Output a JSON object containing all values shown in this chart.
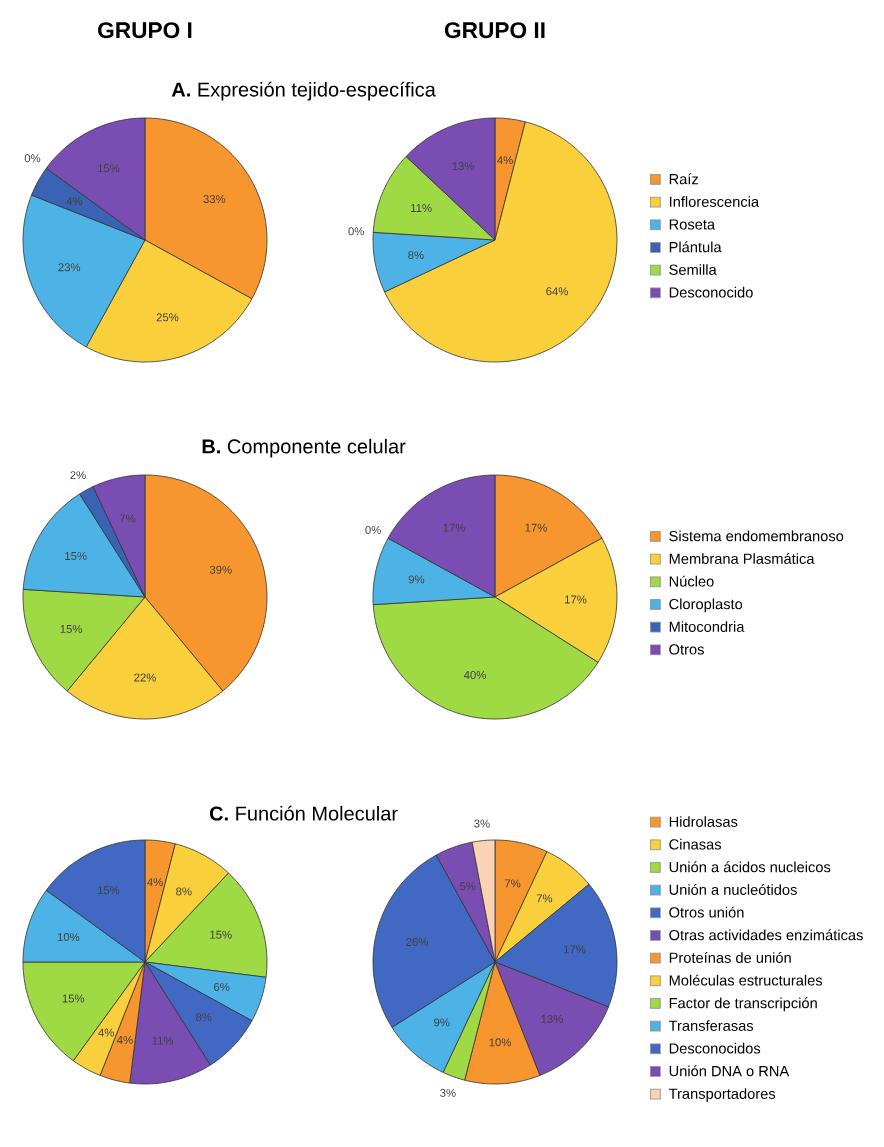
{
  "chart_data": [
    {
      "type": "pie",
      "title": "GRUPO I",
      "subtitle": "**A.** Expresión tejido-específica",
      "categories": [
        null,
        null,
        null,
        null,
        null,
        null
      ],
      "values": [
        33,
        25,
        23,
        4,
        0,
        15
      ],
      "value_labels": [
        "33%",
        "25%",
        "23%",
        "4%",
        "0%",
        "15%"
      ],
      "colors": [
        "#f7962f",
        "#f9cf3c",
        "#4db3e6",
        "#3a63b5",
        "#9fd944",
        "#7a4db3"
      ]
    },
    {
      "type": "pie",
      "title": "GRUPO II",
      "categories": [
        "Raíz",
        "Inflorescencia",
        "Roseta",
        "Plántula",
        "Semilla",
        "Desconocido"
      ],
      "values": [
        4,
        64,
        8,
        0,
        11,
        13
      ],
      "value_labels": [
        "4%",
        "64%",
        "8%",
        "0%",
        "11%",
        "13%"
      ],
      "colors": [
        "#f7962f",
        "#f9cf3c",
        "#4db3e6",
        "#3a63b5",
        "#9fd944",
        "#7a4db3"
      ],
      "legend": "right"
    },
    {
      "type": "pie",
      "subtitle": "**B.** Componente celular",
      "categories": [
        null,
        null,
        null,
        null,
        null,
        null
      ],
      "values": [
        39,
        22,
        15,
        15,
        2,
        7
      ],
      "value_labels": [
        "39%",
        "22%",
        "15%",
        "15%",
        "2%",
        "7%"
      ],
      "colors": [
        "#f7962f",
        "#f9cf3c",
        "#9fd944",
        "#4db3e6",
        "#3a63b5",
        "#7a4db3"
      ]
    },
    {
      "type": "pie",
      "categories": [
        "Sistema endomembranoso",
        "Membrana Plasmática",
        "Núcleo",
        "Cloroplasto",
        "Mitocondria",
        "Otros"
      ],
      "values": [
        17,
        17,
        40,
        9,
        0,
        17
      ],
      "value_labels": [
        "17%",
        "17%",
        "40%",
        "9%",
        "0%",
        "17%"
      ],
      "colors": [
        "#f7962f",
        "#f9cf3c",
        "#9fd944",
        "#4db3e6",
        "#3a63b5",
        "#7a4db3"
      ],
      "legend": "right"
    },
    {
      "type": "pie",
      "subtitle": "**C.** Función Molecular",
      "categories": [
        null,
        null,
        null,
        null,
        null,
        null,
        null,
        null,
        null,
        null,
        null,
        null,
        null
      ],
      "values": [
        4,
        8,
        15,
        6,
        8,
        11,
        4,
        4,
        15,
        10,
        15,
        null,
        null
      ],
      "value_labels": [
        "4%",
        "8%",
        "15%",
        "6%",
        "8%",
        "11%",
        "4%",
        "4%",
        "15%",
        "10%",
        "15%",
        null,
        null
      ],
      "colors": [
        "#f7962f",
        "#f9cf3c",
        "#9fd944",
        "#4db3e6",
        "#4169c4",
        "#7a4db3",
        "#f7962f",
        "#f9cf3c",
        "#9fd944",
        "#4db3e6",
        "#4169c4",
        "#7a4db3",
        "#fad3b4"
      ]
    },
    {
      "type": "pie",
      "categories": [
        "Hidrolasas",
        "Cinasas",
        "Unión a ácidos nucleicos",
        "Unión a nucleótidos",
        "Otros unión",
        "Otras actividades enzimáticas",
        "Proteínas de unión",
        "Moléculas estructurales",
        "Factor de transcripción",
        "Transferasas",
        "Desconocidos",
        "Unión DNA o RNA",
        "Transportadores"
      ],
      "values": [
        7,
        7,
        null,
        null,
        17,
        13,
        10,
        null,
        3,
        9,
        26,
        5,
        3
      ],
      "value_labels": [
        "7%",
        "7%",
        null,
        null,
        "17%",
        "13%",
        "10%",
        null,
        "3%",
        "9%",
        "26%",
        "5%",
        "3%"
      ],
      "colors": [
        "#f7962f",
        "#f9cf3c",
        "#9fd944",
        "#4db3e6",
        "#4169c4",
        "#7a4db3",
        "#f7962f",
        "#f9cf3c",
        "#9fd944",
        "#4db3e6",
        "#4169c4",
        "#7a4db3",
        "#fad3b4"
      ],
      "legend": "right"
    }
  ]
}
